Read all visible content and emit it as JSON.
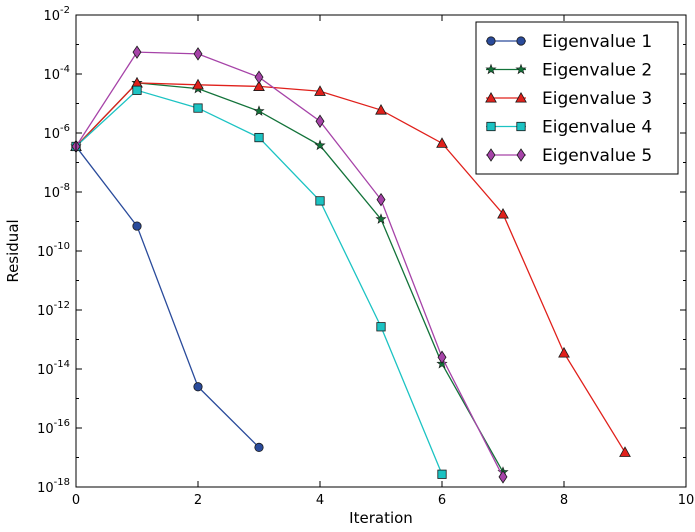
{
  "chart_data": {
    "type": "line",
    "title": "",
    "xlabel": "Iteration",
    "ylabel": "Residual",
    "xlim": [
      0,
      10
    ],
    "ylim_log10": [
      -18,
      -2
    ],
    "y_scale": "log",
    "grid": false,
    "legend_position": "top-right",
    "x_ticks": [
      "0",
      "2",
      "4",
      "6",
      "8",
      "10"
    ],
    "y_ticks": [
      {
        "base": "10",
        "exp": "-18"
      },
      {
        "base": "10",
        "exp": "-16"
      },
      {
        "base": "10",
        "exp": "-14"
      },
      {
        "base": "10",
        "exp": "-12"
      },
      {
        "base": "10",
        "exp": "-10"
      },
      {
        "base": "10",
        "exp": "-8"
      },
      {
        "base": "10",
        "exp": "-6"
      },
      {
        "base": "10",
        "exp": "-4"
      },
      {
        "base": "10",
        "exp": "-2"
      }
    ],
    "series": [
      {
        "name": "Eigenvalue 1",
        "color": "#2a4b9b",
        "marker": "circle",
        "x": [
          0,
          1,
          2,
          3
        ],
        "y": [
          3.5e-07,
          7e-10,
          2.5e-15,
          2.2e-17
        ]
      },
      {
        "name": "Eigenvalue 2",
        "color": "#13733a",
        "marker": "star",
        "x": [
          0,
          1,
          2,
          3,
          4,
          5,
          6,
          7
        ],
        "y": [
          3.5e-07,
          5e-05,
          3.2e-05,
          5.5e-06,
          3.8e-07,
          1.2e-09,
          1.5e-14,
          3.2e-18
        ]
      },
      {
        "name": "Eigenvalue 3",
        "color": "#e0201b",
        "marker": "triangle",
        "x": [
          0,
          1,
          2,
          3,
          4,
          5,
          6,
          7,
          8,
          9
        ],
        "y": [
          3.5e-07,
          5e-05,
          4.3e-05,
          3.8e-05,
          2.6e-05,
          6e-06,
          4.5e-07,
          1.8e-09,
          3.5e-14,
          1.5e-17
        ]
      },
      {
        "name": "Eigenvalue 4",
        "color": "#1cc3c3",
        "marker": "square",
        "x": [
          0,
          1,
          2,
          3,
          4,
          5,
          6
        ],
        "y": [
          3.5e-07,
          2.8e-05,
          7e-06,
          7e-07,
          5e-09,
          2.7e-13,
          2.7e-18
        ]
      },
      {
        "name": "Eigenvalue 5",
        "color": "#a643a8",
        "marker": "diamond",
        "x": [
          0,
          1,
          2,
          3,
          4,
          5,
          6,
          7
        ],
        "y": [
          3.5e-07,
          0.00055,
          0.00048,
          7.8e-05,
          2.5e-06,
          5.5e-09,
          2.5e-14,
          2.2e-18
        ]
      }
    ]
  }
}
